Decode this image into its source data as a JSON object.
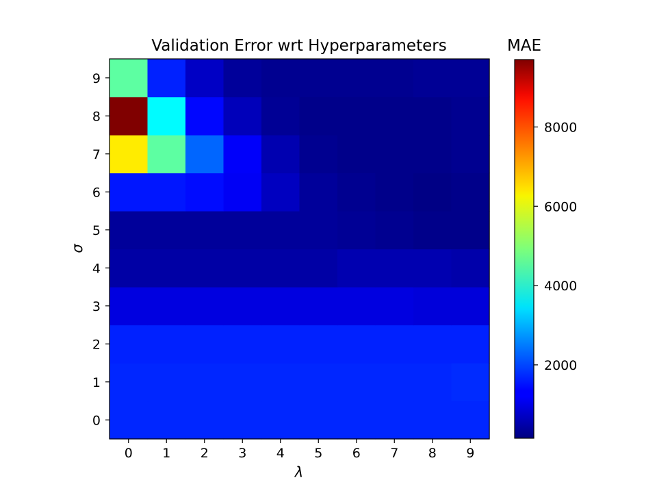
{
  "chart_data": {
    "type": "heatmap",
    "title": "Validation Error wrt Hyperparameters",
    "xlabel": "λ",
    "ylabel": "σ",
    "x_categories": [
      "0",
      "1",
      "2",
      "3",
      "4",
      "5",
      "6",
      "7",
      "8",
      "9"
    ],
    "y_categories": [
      "0",
      "1",
      "2",
      "3",
      "4",
      "5",
      "6",
      "7",
      "8",
      "9"
    ],
    "colormap": "jet",
    "colorbar": {
      "title": "MAE",
      "vmin": 150,
      "vmax": 9700,
      "ticks": [
        2000,
        4000,
        6000,
        8000
      ],
      "tick_labels": [
        "2000",
        "4000",
        "6000",
        "8000"
      ]
    },
    "grid": false,
    "values": [
      [
        1700,
        1700,
        1700,
        1700,
        1700,
        1700,
        1700,
        1700,
        1700,
        1700
      ],
      [
        1700,
        1700,
        1700,
        1700,
        1700,
        1700,
        1700,
        1700,
        1700,
        1750
      ],
      [
        1650,
        1650,
        1650,
        1650,
        1650,
        1650,
        1650,
        1650,
        1650,
        1650
      ],
      [
        1050,
        1050,
        1050,
        1050,
        1050,
        1050,
        1050,
        1050,
        1000,
        1000
      ],
      [
        500,
        500,
        500,
        500,
        500,
        500,
        600,
        600,
        600,
        550
      ],
      [
        400,
        400,
        400,
        400,
        400,
        400,
        350,
        300,
        250,
        250
      ],
      [
        1550,
        1550,
        1450,
        1250,
        750,
        400,
        300,
        250,
        200,
        250
      ],
      [
        6300,
        4600,
        2300,
        1300,
        600,
        300,
        250,
        250,
        250,
        300
      ],
      [
        9700,
        3700,
        1400,
        700,
        350,
        250,
        250,
        250,
        250,
        300
      ],
      [
        4600,
        1650,
        800,
        400,
        300,
        300,
        300,
        300,
        350,
        350
      ]
    ]
  }
}
